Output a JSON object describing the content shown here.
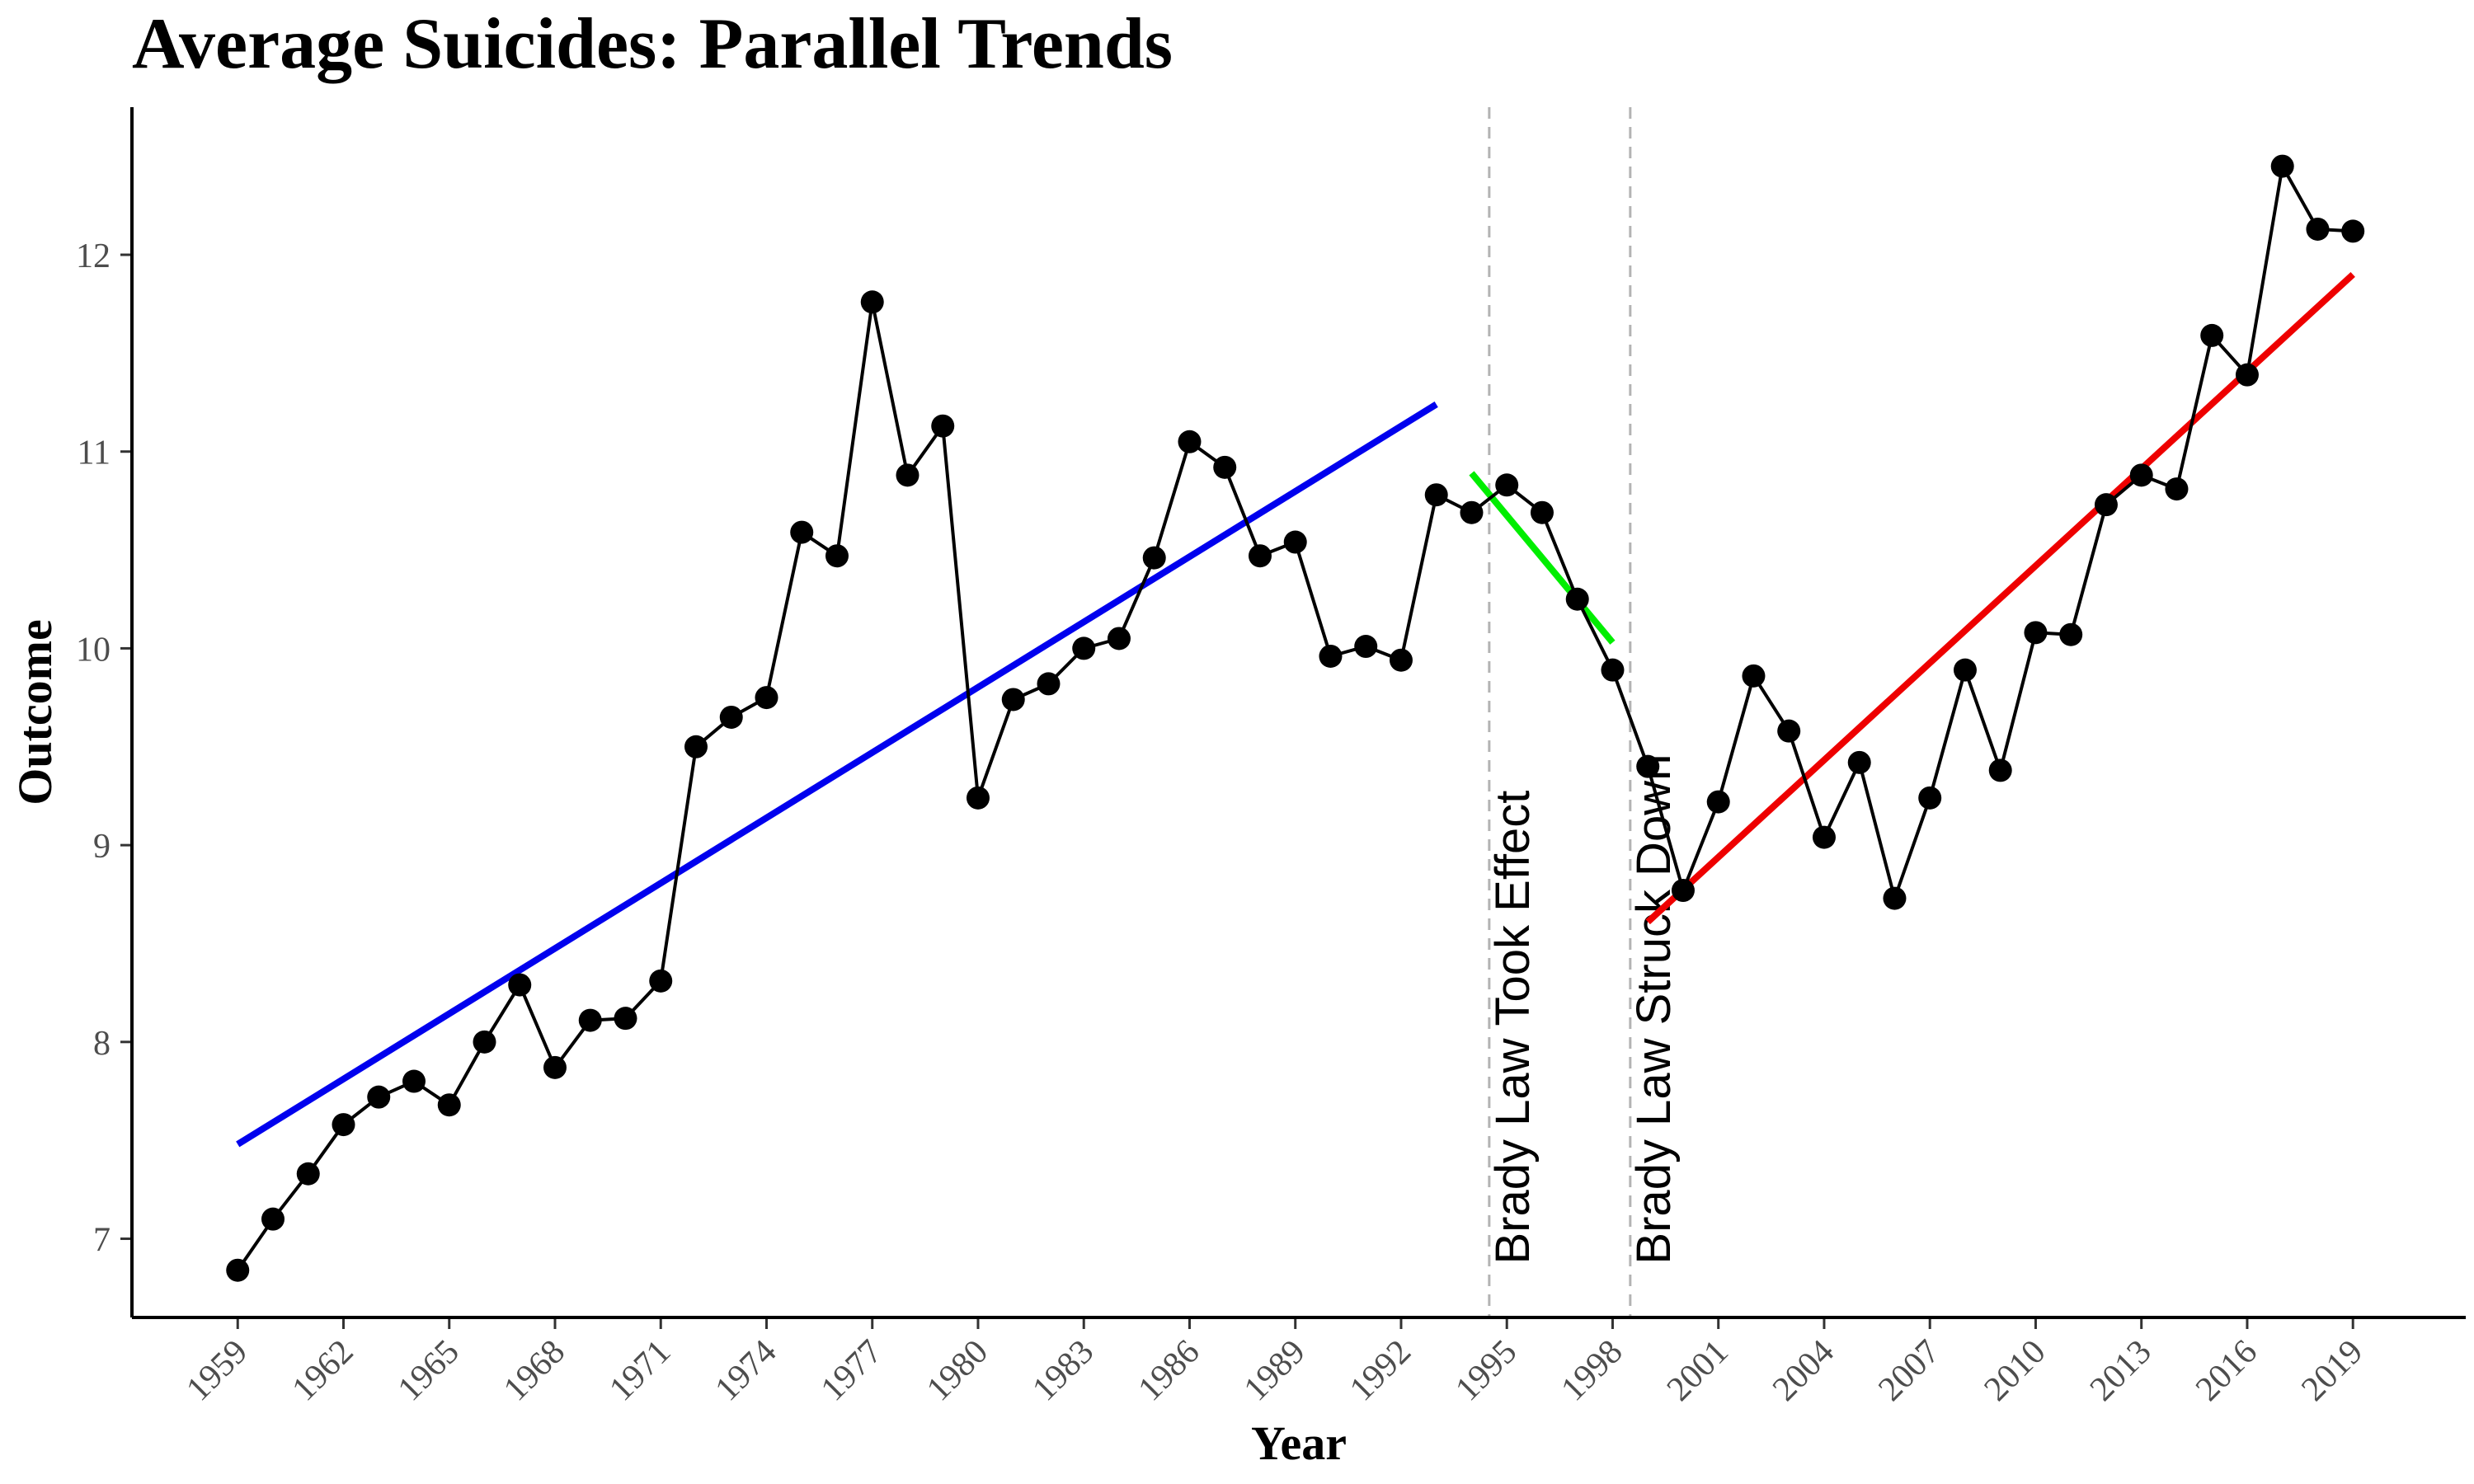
{
  "chart_data": {
    "type": "line",
    "title": "Average Suicides: Parallel Trends",
    "xlabel": "Year",
    "ylabel": "Outcome",
    "xlim": [
      1956,
      2022.2
    ],
    "ylim": [
      6.6,
      12.75
    ],
    "x_ticks": [
      1959,
      1962,
      1965,
      1968,
      1971,
      1974,
      1977,
      1980,
      1983,
      1986,
      1989,
      1992,
      1995,
      1998,
      2001,
      2004,
      2007,
      2010,
      2013,
      2016,
      2019
    ],
    "y_ticks": [
      7,
      8,
      9,
      10,
      11,
      12
    ],
    "grid": false,
    "legend": "none",
    "series": [
      {
        "type": "line+points",
        "color": "#000000",
        "x": [
          1959,
          1960,
          1961,
          1962,
          1963,
          1964,
          1965,
          1966,
          1967,
          1968,
          1969,
          1970,
          1971,
          1972,
          1973,
          1974,
          1975,
          1976,
          1977,
          1978,
          1979,
          1980,
          1981,
          1982,
          1983,
          1984,
          1985,
          1986,
          1987,
          1988,
          1989,
          1990,
          1991,
          1992,
          1993,
          1994,
          1995,
          1996,
          1997,
          1998,
          1999,
          2000,
          2001,
          2002,
          2003,
          2004,
          2005,
          2006,
          2007,
          2008,
          2009,
          2010,
          2011,
          2012,
          2013,
          2014,
          2015,
          2016,
          2017,
          2018,
          2019
        ],
        "values": [
          6.84,
          7.1,
          7.33,
          7.58,
          7.72,
          7.8,
          7.68,
          8.0,
          8.29,
          7.87,
          8.11,
          8.12,
          8.31,
          9.5,
          9.65,
          9.75,
          10.59,
          10.47,
          11.76,
          10.88,
          11.13,
          9.24,
          9.74,
          9.82,
          10.0,
          10.05,
          10.46,
          11.05,
          10.92,
          10.47,
          10.54,
          9.96,
          10.01,
          9.94,
          10.78,
          10.69,
          10.83,
          10.69,
          10.25,
          9.89,
          9.4,
          8.77,
          9.22,
          9.86,
          9.58,
          9.04,
          9.42,
          8.73,
          9.24,
          9.89,
          9.38,
          10.08,
          10.07,
          10.73,
          10.88,
          10.81,
          11.59,
          11.39,
          12.45,
          12.13,
          12.12
        ]
      },
      {
        "type": "trend",
        "color": "#0000ee",
        "x": [
          1959,
          1993
        ],
        "values": [
          7.48,
          11.24
        ]
      },
      {
        "type": "trend",
        "color": "#00ee00",
        "x": [
          1994,
          1998
        ],
        "values": [
          10.89,
          10.03
        ]
      },
      {
        "type": "trend",
        "color": "#ee0000",
        "x": [
          1999,
          2019
        ],
        "values": [
          8.61,
          11.9
        ]
      }
    ],
    "vlines": [
      {
        "x": 1994.5,
        "label": "Brady Law Took Effect",
        "label_anchor_y": 6.87,
        "color": "#b3b3b3"
      },
      {
        "x": 1998.5,
        "label": "Brady Law Struck Down",
        "label_anchor_y": 6.87,
        "color": "#b3b3b3"
      }
    ]
  }
}
